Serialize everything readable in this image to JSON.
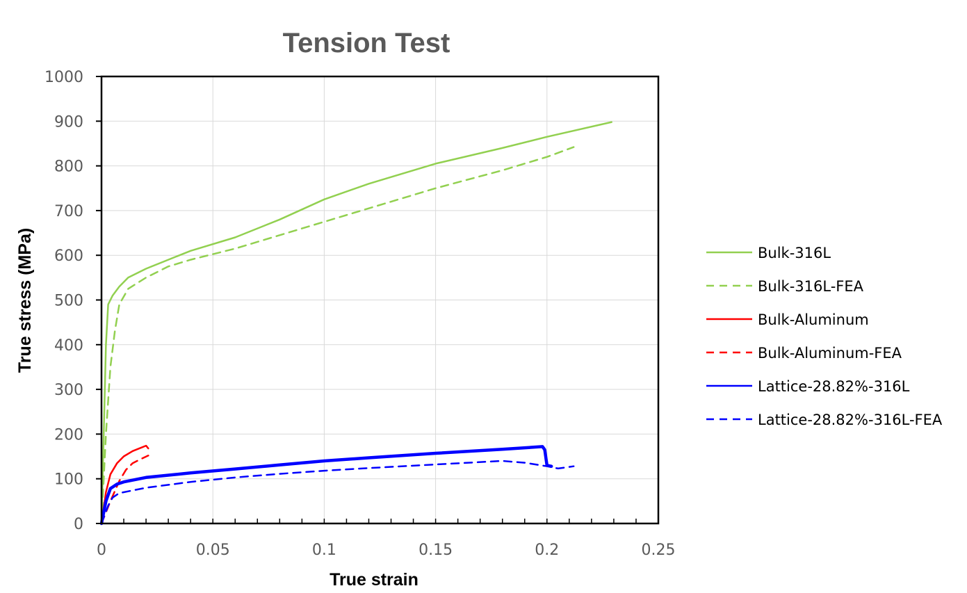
{
  "chart_data": {
    "type": "line",
    "title": "Tension Test",
    "xlabel": "True strain",
    "ylabel": "True stress (MPa)",
    "xlim": [
      0,
      0.25
    ],
    "ylim": [
      0,
      1000
    ],
    "x_ticks": [
      "0",
      "0.05",
      "0.1",
      "0.15",
      "0.2",
      "0.25"
    ],
    "y_ticks": [
      "0",
      "100",
      "200",
      "300",
      "400",
      "500",
      "600",
      "700",
      "800",
      "900",
      "1000"
    ],
    "grid": true,
    "legend_position": "right",
    "series": [
      {
        "name": "Bulk-316L",
        "color": "#92d050",
        "dash": "solid",
        "points": [
          [
            0,
            0
          ],
          [
            0.0015,
            300
          ],
          [
            0.002,
            400
          ],
          [
            0.003,
            490
          ],
          [
            0.005,
            510
          ],
          [
            0.008,
            530
          ],
          [
            0.012,
            550
          ],
          [
            0.02,
            570
          ],
          [
            0.03,
            590
          ],
          [
            0.04,
            610
          ],
          [
            0.06,
            640
          ],
          [
            0.08,
            680
          ],
          [
            0.1,
            725
          ],
          [
            0.12,
            760
          ],
          [
            0.15,
            805
          ],
          [
            0.18,
            840
          ],
          [
            0.2,
            865
          ],
          [
            0.229,
            898
          ]
        ]
      },
      {
        "name": "Bulk-316L-FEA",
        "color": "#92d050",
        "dash": "dashed",
        "points": [
          [
            0,
            0
          ],
          [
            0.002,
            200
          ],
          [
            0.004,
            350
          ],
          [
            0.006,
            430
          ],
          [
            0.008,
            490
          ],
          [
            0.012,
            525
          ],
          [
            0.02,
            550
          ],
          [
            0.03,
            575
          ],
          [
            0.04,
            590
          ],
          [
            0.06,
            615
          ],
          [
            0.08,
            645
          ],
          [
            0.1,
            675
          ],
          [
            0.12,
            705
          ],
          [
            0.15,
            750
          ],
          [
            0.18,
            790
          ],
          [
            0.2,
            820
          ],
          [
            0.212,
            842
          ]
        ]
      },
      {
        "name": "Bulk-Aluminum",
        "color": "#ff0000",
        "dash": "solid",
        "points": [
          [
            0,
            0
          ],
          [
            0.002,
            70
          ],
          [
            0.004,
            110
          ],
          [
            0.007,
            135
          ],
          [
            0.01,
            150
          ],
          [
            0.014,
            162
          ],
          [
            0.018,
            170
          ],
          [
            0.02,
            174
          ],
          [
            0.021,
            168
          ]
        ]
      },
      {
        "name": "Bulk-Aluminum-FEA",
        "color": "#ff0000",
        "dash": "dashed",
        "points": [
          [
            0,
            0
          ],
          [
            0.004,
            50
          ],
          [
            0.008,
            95
          ],
          [
            0.011,
            120
          ],
          [
            0.014,
            135
          ],
          [
            0.018,
            145
          ],
          [
            0.021,
            152
          ]
        ]
      },
      {
        "name": "Lattice-28.82%-316L",
        "color": "#0000ff",
        "dash": "solid",
        "points": [
          [
            0,
            0
          ],
          [
            0.002,
            50
          ],
          [
            0.004,
            78
          ],
          [
            0.007,
            88
          ],
          [
            0.01,
            93
          ],
          [
            0.02,
            103
          ],
          [
            0.04,
            113
          ],
          [
            0.06,
            122
          ],
          [
            0.08,
            131
          ],
          [
            0.1,
            140
          ],
          [
            0.12,
            147
          ],
          [
            0.15,
            157
          ],
          [
            0.18,
            166
          ],
          [
            0.198,
            172
          ],
          [
            0.199,
            165
          ],
          [
            0.2,
            130
          ],
          [
            0.202,
            128
          ]
        ]
      },
      {
        "name": "Lattice-28.82%-316L-FEA",
        "color": "#0000ff",
        "dash": "dashed",
        "points": [
          [
            0,
            0
          ],
          [
            0.003,
            40
          ],
          [
            0.005,
            58
          ],
          [
            0.008,
            68
          ],
          [
            0.02,
            80
          ],
          [
            0.04,
            93
          ],
          [
            0.06,
            103
          ],
          [
            0.08,
            111
          ],
          [
            0.1,
            118
          ],
          [
            0.12,
            124
          ],
          [
            0.15,
            132
          ],
          [
            0.18,
            140
          ],
          [
            0.19,
            136
          ],
          [
            0.2,
            128
          ],
          [
            0.205,
            123
          ],
          [
            0.212,
            128
          ]
        ]
      }
    ]
  }
}
